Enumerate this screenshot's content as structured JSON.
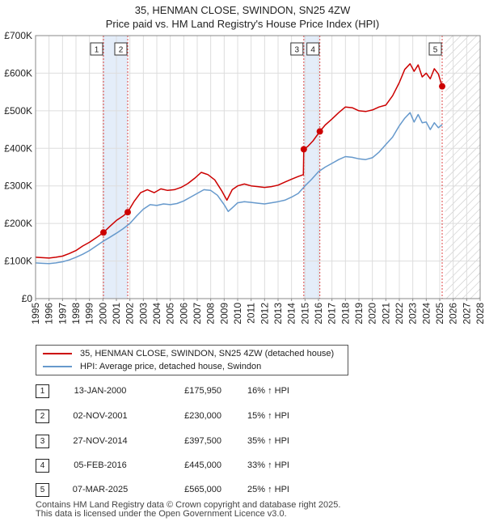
{
  "chart_data": {
    "type": "line",
    "title": "35, HENMAN CLOSE, SWINDON, SN25 4ZW",
    "subtitle": "Price paid vs. HM Land Registry's House Price Index (HPI)",
    "xlim": [
      1995,
      2028
    ],
    "ylim": [
      0,
      700000
    ],
    "y_ticks": [
      0,
      100000,
      200000,
      300000,
      400000,
      500000,
      600000,
      700000
    ],
    "y_tick_labels": [
      "£0",
      "£100K",
      "£200K",
      "£300K",
      "£400K",
      "£500K",
      "£600K",
      "£700K"
    ],
    "x_ticks": [
      1995,
      1996,
      1997,
      1998,
      1999,
      2000,
      2001,
      2002,
      2003,
      2004,
      2005,
      2006,
      2007,
      2008,
      2009,
      2010,
      2011,
      2012,
      2013,
      2014,
      2015,
      2016,
      2017,
      2018,
      2019,
      2020,
      2021,
      2022,
      2023,
      2024,
      2025,
      2026,
      2027,
      2028
    ],
    "x_tick_labels": [
      "1995",
      "1996",
      "1997",
      "1998",
      "1999",
      "2000",
      "2001",
      "2002",
      "2003",
      "2004",
      "2005",
      "2006",
      "2007",
      "2008",
      "2009",
      "2010",
      "2011",
      "2012",
      "2013",
      "2014",
      "2015",
      "2016",
      "2017",
      "2018",
      "2019",
      "2020",
      "2021",
      "2022",
      "2023",
      "2024",
      "2025",
      "2026",
      "2027",
      "2028"
    ],
    "grid": true,
    "hatched_future_from": 2025.4,
    "shaded_spans": [
      [
        2000.04,
        2001.84
      ],
      [
        2014.91,
        2016.1
      ]
    ],
    "series": [
      {
        "name": "35, HENMAN CLOSE, SWINDON, SN25 4ZW (detached house)",
        "color": "#cc0000",
        "x": [
          1995.0,
          1995.5,
          1996.0,
          1996.5,
          1997.0,
          1997.5,
          1998.0,
          1998.5,
          1999.0,
          1999.5,
          2000.04,
          2000.5,
          2001.0,
          2001.5,
          2001.84,
          2002.3,
          2002.8,
          2003.3,
          2003.8,
          2004.3,
          2004.8,
          2005.3,
          2005.8,
          2006.3,
          2006.8,
          2007.3,
          2007.8,
          2008.3,
          2008.8,
          2009.2,
          2009.6,
          2010.0,
          2010.5,
          2011.0,
          2011.5,
          2012.0,
          2012.5,
          2013.0,
          2013.5,
          2014.0,
          2014.5,
          2014.88,
          2014.91,
          2015.2,
          2015.6,
          2016.1,
          2016.5,
          2017.0,
          2017.5,
          2018.0,
          2018.5,
          2019.0,
          2019.5,
          2020.0,
          2020.5,
          2021.0,
          2021.5,
          2022.0,
          2022.4,
          2022.8,
          2023.1,
          2023.4,
          2023.7,
          2024.0,
          2024.3,
          2024.6,
          2024.9,
          2025.05,
          2025.18
        ],
        "values": [
          110000,
          109000,
          108000,
          110000,
          113000,
          120000,
          128000,
          140000,
          150000,
          162000,
          175950,
          192000,
          208000,
          220000,
          230000,
          258000,
          282000,
          290000,
          282000,
          292000,
          288000,
          290000,
          296000,
          306000,
          320000,
          336000,
          330000,
          316000,
          288000,
          262000,
          290000,
          300000,
          305000,
          300000,
          298000,
          296000,
          298000,
          302000,
          310000,
          318000,
          325000,
          330000,
          397500,
          405000,
          420000,
          445000,
          462000,
          478000,
          495000,
          510000,
          508000,
          500000,
          498000,
          502000,
          510000,
          515000,
          540000,
          575000,
          610000,
          625000,
          605000,
          622000,
          590000,
          600000,
          585000,
          612000,
          598000,
          580000,
          565000
        ]
      },
      {
        "name": "HPI: Average price, detached house, Swindon",
        "color": "#6699cc",
        "x": [
          1995.0,
          1995.5,
          1996.0,
          1996.5,
          1997.0,
          1997.5,
          1998.0,
          1998.5,
          1999.0,
          1999.5,
          2000.0,
          2000.5,
          2001.0,
          2001.5,
          2002.0,
          2002.5,
          2003.0,
          2003.5,
          2004.0,
          2004.5,
          2005.0,
          2005.5,
          2006.0,
          2006.5,
          2007.0,
          2007.5,
          2008.0,
          2008.5,
          2009.0,
          2009.3,
          2009.7,
          2010.0,
          2010.5,
          2011.0,
          2011.5,
          2012.0,
          2012.5,
          2013.0,
          2013.5,
          2014.0,
          2014.5,
          2015.0,
          2015.5,
          2016.0,
          2016.5,
          2017.0,
          2017.5,
          2018.0,
          2018.5,
          2019.0,
          2019.5,
          2020.0,
          2020.5,
          2021.0,
          2021.5,
          2022.0,
          2022.4,
          2022.8,
          2023.1,
          2023.4,
          2023.7,
          2024.0,
          2024.3,
          2024.6,
          2024.9,
          2025.18
        ],
        "values": [
          95000,
          94000,
          93000,
          95000,
          98000,
          103000,
          110000,
          118000,
          128000,
          140000,
          152000,
          163000,
          174000,
          186000,
          200000,
          220000,
          238000,
          250000,
          248000,
          252000,
          250000,
          253000,
          260000,
          270000,
          280000,
          290000,
          288000,
          275000,
          250000,
          232000,
          245000,
          255000,
          258000,
          256000,
          254000,
          252000,
          255000,
          258000,
          262000,
          270000,
          280000,
          300000,
          318000,
          338000,
          350000,
          360000,
          370000,
          378000,
          376000,
          372000,
          370000,
          375000,
          390000,
          410000,
          430000,
          460000,
          480000,
          495000,
          470000,
          490000,
          468000,
          470000,
          450000,
          468000,
          455000,
          463000
        ]
      }
    ],
    "sale_markers": [
      {
        "label": "1",
        "x": 2000.04,
        "value": 175950
      },
      {
        "label": "2",
        "x": 2001.84,
        "value": 230000
      },
      {
        "label": "3",
        "x": 2014.91,
        "value": 397500
      },
      {
        "label": "4",
        "x": 2016.1,
        "value": 445000
      },
      {
        "label": "5",
        "x": 2025.18,
        "value": 565000
      }
    ]
  },
  "legend": {
    "property_label": "35, HENMAN CLOSE, SWINDON, SN25 4ZW (detached house)",
    "hpi_label": "HPI: Average price, detached house, Swindon",
    "property_color": "#cc0000",
    "hpi_color": "#6699cc"
  },
  "sales": [
    {
      "num": "1",
      "date": "13-JAN-2000",
      "price": "£175,950",
      "pct": "16% ↑ HPI"
    },
    {
      "num": "2",
      "date": "02-NOV-2001",
      "price": "£230,000",
      "pct": "15% ↑ HPI"
    },
    {
      "num": "3",
      "date": "27-NOV-2014",
      "price": "£397,500",
      "pct": "35% ↑ HPI"
    },
    {
      "num": "4",
      "date": "05-FEB-2016",
      "price": "£445,000",
      "pct": "33% ↑ HPI"
    },
    {
      "num": "5",
      "date": "07-MAR-2025",
      "price": "£565,000",
      "pct": "25% ↑ HPI"
    }
  ],
  "footer": {
    "line1": "Contains HM Land Registry data © Crown copyright and database right 2025.",
    "line2": "This data is licensed under the Open Government Licence v3.0."
  }
}
